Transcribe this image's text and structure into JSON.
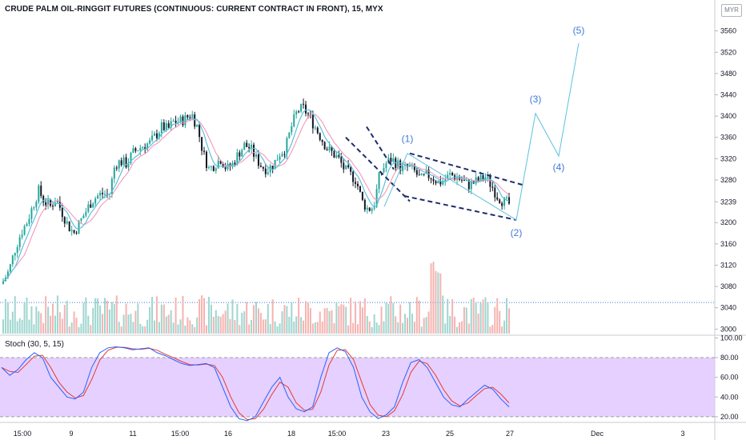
{
  "header": {
    "title": "CRUDE PALM OIL-RINGGIT FUTURES (CONTINUOUS: CURRENT CONTRACT IN FRONT), 15, MYX",
    "currency_button": "MYR"
  },
  "indicator": {
    "label": "Stoch (30, 5, 15)"
  },
  "colors": {
    "up_candle": "#26a69a",
    "down_candle": "#131722",
    "ma_line": "#5bc0de",
    "ma_line_2": "#f48fb1",
    "volume_up": "#9fd6cf",
    "volume_down": "#f5b3b0",
    "wave_line": "#3c78d8",
    "stoch_k": "#2962ff",
    "stoch_d": "#e53935",
    "stoch_band": "#e1c8ff"
  },
  "chart_data": [
    {
      "type": "candlestick",
      "title": "CRUDE PALM OIL-RINGGIT FUTURES (CONTINUOUS: CURRENT CONTRACT IN FRONT), 15, MYX",
      "x_ticks": [
        "15:00",
        "9",
        "11",
        "15:00",
        "16",
        "18",
        "15:00",
        "23",
        "25",
        "27",
        "Dec",
        "3"
      ],
      "y_ticks": [
        3000,
        3040,
        3080,
        3120,
        3160,
        3200,
        3239,
        3280,
        3320,
        3360,
        3400,
        3440,
        3480,
        3520,
        3560
      ],
      "ylim": [
        2990,
        3585
      ],
      "price_path": [
        3090,
        3110,
        3150,
        3180,
        3200,
        3230,
        3260,
        3240,
        3230,
        3245,
        3220,
        3195,
        3180,
        3200,
        3220,
        3240,
        3250,
        3255,
        3250,
        3310,
        3315,
        3310,
        3330,
        3340,
        3345,
        3350,
        3365,
        3380,
        3375,
        3390,
        3390,
        3395,
        3405,
        3380,
        3330,
        3300,
        3310,
        3320,
        3300,
        3310,
        3330,
        3345,
        3340,
        3320,
        3305,
        3300,
        3310,
        3330,
        3340,
        3380,
        3410,
        3415,
        3400,
        3380,
        3360,
        3340,
        3330,
        3320,
        3300,
        3290,
        3280,
        3240,
        3225,
        3230,
        3290,
        3310,
        3320,
        3310,
        3300,
        3305,
        3295,
        3280,
        3290,
        3285,
        3275,
        3280,
        3290,
        3285,
        3280,
        3270,
        3275,
        3280,
        3285,
        3270,
        3250,
        3240,
        3235
      ],
      "wave_labels": [
        "(1)",
        "(2)",
        "(3)",
        "(4)",
        "(5)"
      ],
      "wave_points": [
        {
          "label": "(1)",
          "price": 3330
        },
        {
          "label": "(2)",
          "price": 3205
        },
        {
          "label": "(3)",
          "price": 3405
        },
        {
          "label": "(4)",
          "price": 3325
        },
        {
          "label": "(5)",
          "price": 3537
        }
      ],
      "horizontal_line": 3050
    },
    {
      "type": "line",
      "name": "Stoch (30, 5, 15)",
      "y_ticks": [
        20,
        40,
        60,
        80,
        100
      ],
      "ylim": [
        15,
        102
      ],
      "band": [
        20,
        80
      ],
      "k_values": [
        70,
        62,
        68,
        78,
        85,
        80,
        60,
        50,
        40,
        38,
        45,
        70,
        85,
        90,
        91,
        90,
        88,
        89,
        90,
        85,
        82,
        78,
        74,
        72,
        73,
        74,
        70,
        50,
        30,
        18,
        16,
        20,
        35,
        50,
        60,
        40,
        28,
        25,
        30,
        60,
        85,
        90,
        86,
        70,
        40,
        25,
        18,
        22,
        30,
        55,
        75,
        78,
        70,
        55,
        40,
        32,
        30,
        38,
        45,
        52,
        48,
        38,
        30
      ]
    }
  ]
}
